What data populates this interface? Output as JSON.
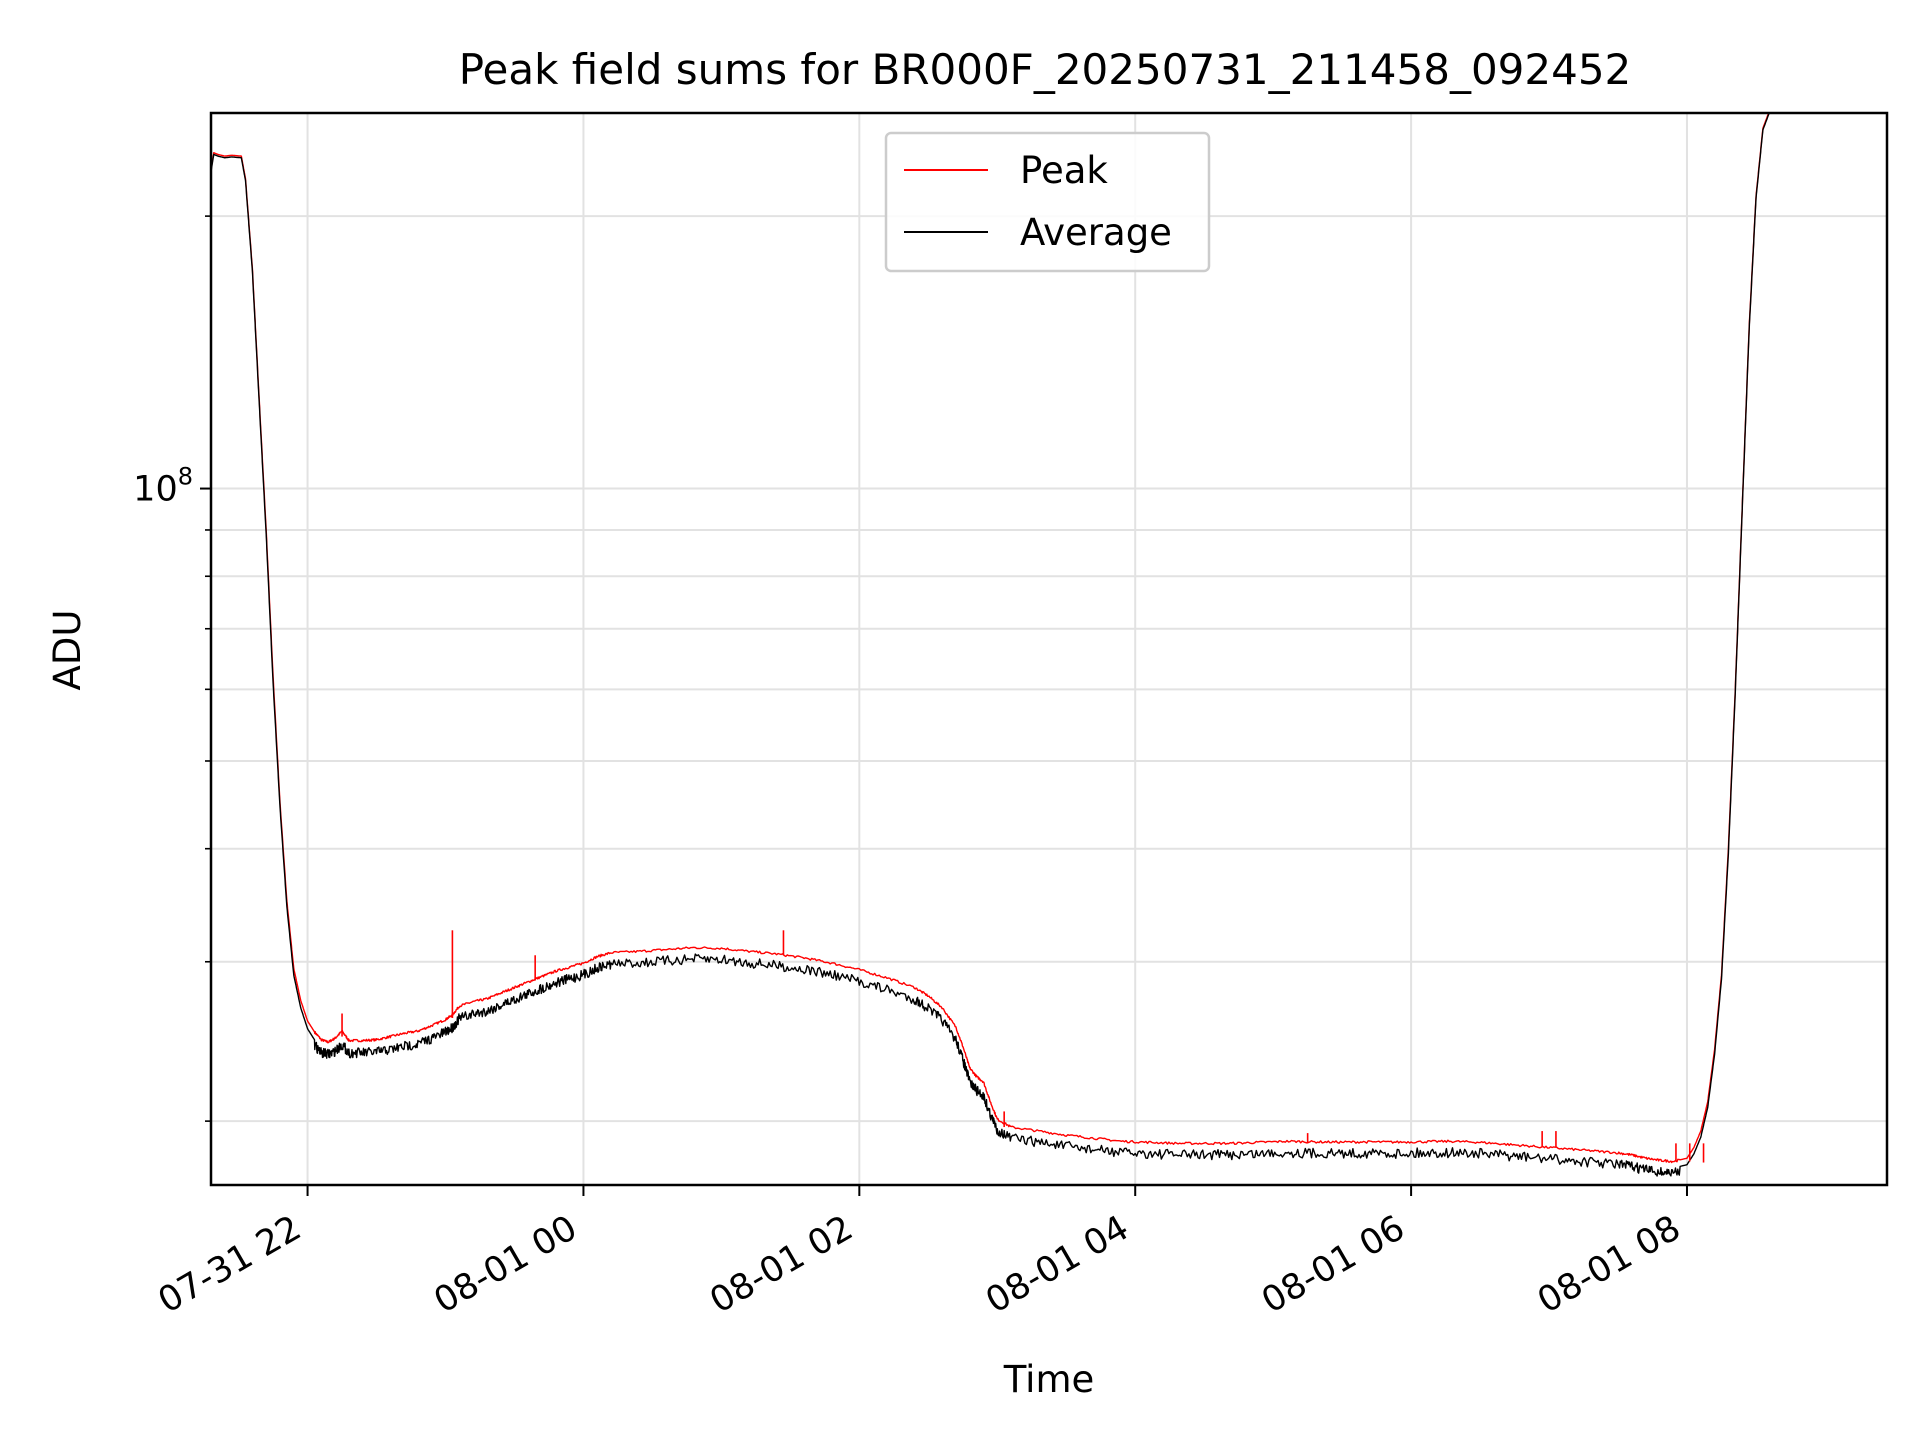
{
  "chart_data": {
    "type": "line",
    "title": "Peak field sums for BR000F_20250731_211458_092452",
    "xlabel": "Time",
    "ylabel": "ADU",
    "y_scale": "log",
    "x_tick_labels": [
      "07-31 22",
      "08-01 00",
      "08-01 02",
      "08-01 04",
      "08-01 06",
      "08-01 08"
    ],
    "x_ticks_hours_from_0731_2200": [
      0,
      2,
      4,
      6,
      8,
      10
    ],
    "y_tick_labels": [
      {
        "base": "10",
        "exp": "8",
        "value": 100000000
      }
    ],
    "y_minor_ticks": [
      20000000,
      30000000,
      40000000,
      50000000,
      60000000,
      70000000,
      80000000,
      90000000,
      200000000
    ],
    "xlim_hours_from_0731_2200": [
      -0.7,
      11.45
    ],
    "ylim": [
      17000000,
      260000000
    ],
    "grid": true,
    "legend_position": "upper center",
    "series": [
      {
        "name": "Peak",
        "color": "#ff0000",
        "points": [
          [
            -0.7,
            225000000
          ],
          [
            -0.68,
            235000000
          ],
          [
            -0.65,
            234000000
          ],
          [
            -0.6,
            233000000
          ],
          [
            -0.55,
            233500000
          ],
          [
            -0.48,
            233000000
          ],
          [
            -0.45,
            220000000
          ],
          [
            -0.4,
            175000000
          ],
          [
            -0.35,
            125000000
          ],
          [
            -0.3,
            90000000
          ],
          [
            -0.25,
            62000000
          ],
          [
            -0.2,
            45000000
          ],
          [
            -0.15,
            35000000
          ],
          [
            -0.1,
            29500000
          ],
          [
            -0.05,
            27200000
          ],
          [
            0.0,
            25800000
          ],
          [
            0.05,
            25100000
          ],
          [
            0.1,
            24600000
          ],
          [
            0.15,
            24450000
          ],
          [
            0.2,
            24700000
          ],
          [
            0.25,
            25150000
          ],
          [
            0.3,
            24550000
          ],
          [
            0.4,
            24550000
          ],
          [
            0.5,
            24600000
          ],
          [
            0.6,
            24800000
          ],
          [
            0.7,
            25000000
          ],
          [
            0.8,
            25150000
          ],
          [
            0.9,
            25500000
          ],
          [
            1.0,
            25900000
          ],
          [
            1.05,
            26200000
          ],
          [
            1.1,
            26800000
          ],
          [
            1.2,
            27100000
          ],
          [
            1.3,
            27300000
          ],
          [
            1.4,
            27700000
          ],
          [
            1.5,
            28100000
          ],
          [
            1.6,
            28500000
          ],
          [
            1.7,
            28900000
          ],
          [
            1.8,
            29300000
          ],
          [
            1.9,
            29600000
          ],
          [
            2.0,
            29900000
          ],
          [
            2.1,
            30400000
          ],
          [
            2.2,
            30700000
          ],
          [
            2.4,
            30800000
          ],
          [
            2.6,
            30950000
          ],
          [
            2.8,
            31100000
          ],
          [
            3.0,
            31050000
          ],
          [
            3.2,
            30800000
          ],
          [
            3.4,
            30600000
          ],
          [
            3.6,
            30300000
          ],
          [
            3.8,
            29900000
          ],
          [
            4.0,
            29400000
          ],
          [
            4.2,
            28800000
          ],
          [
            4.4,
            28100000
          ],
          [
            4.5,
            27500000
          ],
          [
            4.6,
            26700000
          ],
          [
            4.7,
            25400000
          ],
          [
            4.75,
            24200000
          ],
          [
            4.8,
            22900000
          ],
          [
            4.85,
            22400000
          ],
          [
            4.9,
            22100000
          ],
          [
            4.95,
            21000000
          ],
          [
            5.0,
            20100000
          ],
          [
            5.1,
            19700000
          ],
          [
            5.3,
            19500000
          ],
          [
            5.5,
            19300000
          ],
          [
            5.7,
            19150000
          ],
          [
            5.9,
            19000000
          ],
          [
            6.1,
            18950000
          ],
          [
            6.3,
            18900000
          ],
          [
            6.5,
            18900000
          ],
          [
            6.7,
            18900000
          ],
          [
            6.9,
            18950000
          ],
          [
            7.1,
            19000000
          ],
          [
            7.3,
            18970000
          ],
          [
            7.5,
            18960000
          ],
          [
            7.7,
            18970000
          ],
          [
            7.9,
            18960000
          ],
          [
            8.1,
            18980000
          ],
          [
            8.3,
            19000000
          ],
          [
            8.5,
            18950000
          ],
          [
            8.7,
            18850000
          ],
          [
            8.9,
            18750000
          ],
          [
            9.1,
            18650000
          ],
          [
            9.3,
            18550000
          ],
          [
            9.5,
            18450000
          ],
          [
            9.6,
            18350000
          ],
          [
            9.7,
            18200000
          ],
          [
            9.8,
            18100000
          ],
          [
            9.9,
            18050000
          ],
          [
            10.0,
            18200000
          ],
          [
            10.05,
            18700000
          ],
          [
            10.1,
            19500000
          ],
          [
            10.15,
            21000000
          ],
          [
            10.2,
            24000000
          ],
          [
            10.25,
            29000000
          ],
          [
            10.3,
            40000000
          ],
          [
            10.35,
            60000000
          ],
          [
            10.4,
            95000000
          ],
          [
            10.45,
            150000000
          ],
          [
            10.5,
            210000000
          ],
          [
            10.55,
            250000000
          ],
          [
            10.6,
            262000000
          ]
        ]
      },
      {
        "name": "Average",
        "color": "#000000",
        "points": [
          [
            -0.7,
            224000000
          ],
          [
            -0.68,
            234000000
          ],
          [
            -0.65,
            233000000
          ],
          [
            -0.6,
            232000000
          ],
          [
            -0.55,
            232500000
          ],
          [
            -0.48,
            232000000
          ],
          [
            -0.45,
            219000000
          ],
          [
            -0.4,
            174000000
          ],
          [
            -0.35,
            124000000
          ],
          [
            -0.3,
            89000000
          ],
          [
            -0.25,
            61000000
          ],
          [
            -0.2,
            44500000
          ],
          [
            -0.15,
            34500000
          ],
          [
            -0.1,
            29000000
          ],
          [
            -0.05,
            26700000
          ],
          [
            0.0,
            25300000
          ],
          [
            0.05,
            24600000
          ],
          [
            0.1,
            24100000
          ],
          [
            0.15,
            24000000
          ],
          [
            0.2,
            24200000
          ],
          [
            0.25,
            24600000
          ],
          [
            0.3,
            24100000
          ],
          [
            0.4,
            24100000
          ],
          [
            0.5,
            24150000
          ],
          [
            0.6,
            24300000
          ],
          [
            0.7,
            24500000
          ],
          [
            0.8,
            24650000
          ],
          [
            0.9,
            25000000
          ],
          [
            1.0,
            25400000
          ],
          [
            1.05,
            25700000
          ],
          [
            1.1,
            26300000
          ],
          [
            1.2,
            26600000
          ],
          [
            1.3,
            26800000
          ],
          [
            1.4,
            27200000
          ],
          [
            1.5,
            27600000
          ],
          [
            1.6,
            28000000
          ],
          [
            1.7,
            28400000
          ],
          [
            1.8,
            28800000
          ],
          [
            1.9,
            29100000
          ],
          [
            2.0,
            29400000
          ],
          [
            2.1,
            29900000
          ],
          [
            2.2,
            30200000
          ],
          [
            2.4,
            30300000
          ],
          [
            2.6,
            30450000
          ],
          [
            2.8,
            30600000
          ],
          [
            3.0,
            30550000
          ],
          [
            3.2,
            30300000
          ],
          [
            3.4,
            30100000
          ],
          [
            3.6,
            29800000
          ],
          [
            3.8,
            29400000
          ],
          [
            4.0,
            28900000
          ],
          [
            4.2,
            28300000
          ],
          [
            4.4,
            27600000
          ],
          [
            4.5,
            27000000
          ],
          [
            4.6,
            26200000
          ],
          [
            4.7,
            24900000
          ],
          [
            4.75,
            23700000
          ],
          [
            4.8,
            22400000
          ],
          [
            4.85,
            21900000
          ],
          [
            4.9,
            21600000
          ],
          [
            4.95,
            20600000
          ],
          [
            5.0,
            19800000
          ],
          [
            5.1,
            19400000
          ],
          [
            5.3,
            19200000
          ],
          [
            5.5,
            19000000
          ],
          [
            5.7,
            18850000
          ],
          [
            5.9,
            18700000
          ],
          [
            6.1,
            18650000
          ],
          [
            6.3,
            18600000
          ],
          [
            6.5,
            18600000
          ],
          [
            6.7,
            18600000
          ],
          [
            6.9,
            18650000
          ],
          [
            7.1,
            18700000
          ],
          [
            7.3,
            18670000
          ],
          [
            7.5,
            18660000
          ],
          [
            7.7,
            18670000
          ],
          [
            7.9,
            18660000
          ],
          [
            8.1,
            18680000
          ],
          [
            8.3,
            18700000
          ],
          [
            8.5,
            18650000
          ],
          [
            8.7,
            18550000
          ],
          [
            8.9,
            18450000
          ],
          [
            9.1,
            18350000
          ],
          [
            9.3,
            18250000
          ],
          [
            9.5,
            18150000
          ],
          [
            9.6,
            18050000
          ],
          [
            9.7,
            17900000
          ],
          [
            9.8,
            17800000
          ],
          [
            9.9,
            17750000
          ],
          [
            10.0,
            17900000
          ],
          [
            10.05,
            18400000
          ],
          [
            10.1,
            19200000
          ],
          [
            10.15,
            20700000
          ],
          [
            10.2,
            23700000
          ],
          [
            10.25,
            28700000
          ],
          [
            10.3,
            39500000
          ],
          [
            10.35,
            59500000
          ],
          [
            10.4,
            94500000
          ],
          [
            10.45,
            149000000
          ],
          [
            10.5,
            209000000
          ],
          [
            10.55,
            249000000
          ],
          [
            10.6,
            261000000
          ]
        ]
      }
    ],
    "spikes": [
      {
        "x": 0.25,
        "y_low": 24800000,
        "y_high": 26300000
      },
      {
        "x": 1.05,
        "y_low": 26000000,
        "y_high": 32500000
      },
      {
        "x": 1.65,
        "y_low": 28600000,
        "y_high": 30500000
      },
      {
        "x": 3.45,
        "y_low": 30500000,
        "y_high": 32500000
      },
      {
        "x": 5.05,
        "y_low": 19700000,
        "y_high": 20500000
      },
      {
        "x": 7.25,
        "y_low": 18900000,
        "y_high": 19400000
      },
      {
        "x": 8.95,
        "y_low": 18750000,
        "y_high": 19500000
      },
      {
        "x": 9.05,
        "y_low": 18700000,
        "y_high": 19500000
      },
      {
        "x": 9.92,
        "y_low": 18050000,
        "y_high": 18900000
      },
      {
        "x": 10.02,
        "y_low": 18050000,
        "y_high": 18900000
      },
      {
        "x": 10.12,
        "y_low": 18000000,
        "y_high": 18900000
      }
    ]
  }
}
